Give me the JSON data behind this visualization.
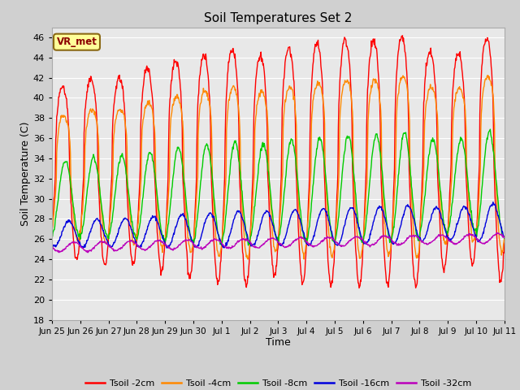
{
  "title": "Soil Temperatures Set 2",
  "xlabel": "Time",
  "ylabel": "Soil Temperature (C)",
  "ylim": [
    18,
    47
  ],
  "yticks": [
    18,
    20,
    22,
    24,
    26,
    28,
    30,
    32,
    34,
    36,
    38,
    40,
    42,
    44,
    46
  ],
  "colors": {
    "Tsoil -2cm": "#ff0000",
    "Tsoil -4cm": "#ff8800",
    "Tsoil -8cm": "#00cc00",
    "Tsoil -16cm": "#0000dd",
    "Tsoil -32cm": "#bb00bb"
  },
  "annotation_text": "VR_met",
  "annotation_color": "#8b0000",
  "annotation_bg": "#ffff99",
  "annotation_edge": "#8b6914",
  "fig_bg": "#d0d0d0",
  "plot_bg": "#e8e8e8",
  "grid_color": "#ffffff",
  "n_points": 960,
  "days": 16,
  "xtick_labels": [
    "Jun 25",
    "Jun 26",
    "Jun 27",
    "Jun 28",
    "Jun 29",
    "Jun 30",
    "Jul 1",
    "Jul 2",
    "Jul 3",
    "Jul 4",
    "Jul 5",
    "Jul 6",
    "Jul 7",
    "Jul 8",
    "Jul 9",
    "Jul 10",
    "Jul 11"
  ],
  "legend_labels": [
    "Tsoil -2cm",
    "Tsoil -4cm",
    "Tsoil -8cm",
    "Tsoil -16cm",
    "Tsoil -32cm"
  ]
}
